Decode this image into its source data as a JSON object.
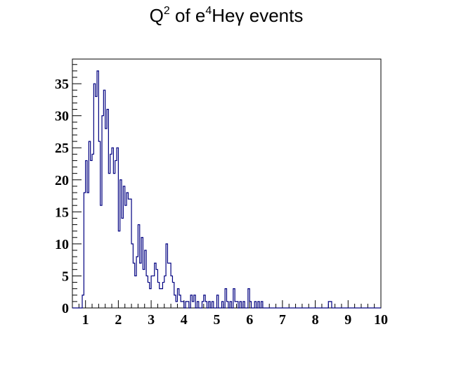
{
  "chart_data": {
    "type": "histogram",
    "title_parts": [
      "Q",
      "2",
      " of e",
      "4",
      "Heγ events"
    ],
    "xlabel": "",
    "ylabel": "",
    "xlim": [
      0.6,
      10.0
    ],
    "ylim": [
      0,
      38.85
    ],
    "x_ticks": [
      "1",
      "2",
      "3",
      "4",
      "5",
      "6",
      "7",
      "8",
      "9",
      "10"
    ],
    "y_ticks": [
      "0",
      "5",
      "10",
      "15",
      "20",
      "25",
      "30",
      "35"
    ],
    "line_color": "#000080",
    "bin_width": 0.05,
    "bin_start": 0.9,
    "values": [
      2,
      18,
      23,
      18,
      26,
      23,
      24,
      35,
      33,
      37,
      26,
      16,
      30,
      34,
      28,
      31,
      21,
      24,
      25,
      21,
      23,
      25,
      12,
      20,
      14,
      19,
      16,
      18,
      17,
      17,
      10,
      7,
      5,
      8,
      13,
      7,
      11,
      6,
      9,
      5,
      4,
      3,
      5,
      5,
      7,
      6,
      4,
      3,
      3,
      4,
      5,
      10,
      7,
      7,
      5,
      4,
      2,
      1,
      3,
      2,
      1,
      1,
      0,
      1,
      1,
      0,
      2,
      1,
      2,
      0,
      1,
      0,
      0,
      1,
      2,
      1,
      0,
      1,
      0,
      1,
      0,
      0,
      2,
      0,
      0,
      1,
      0,
      3,
      1,
      0,
      1,
      0,
      3,
      1,
      1,
      0,
      1,
      0,
      1,
      0,
      0,
      3,
      1,
      0,
      0,
      1,
      0,
      1,
      0,
      1,
      0,
      0,
      0,
      0,
      0,
      0,
      0,
      0,
      0,
      0,
      0,
      0,
      0,
      0,
      0,
      0,
      0,
      0,
      0,
      0,
      0,
      0,
      0,
      0,
      0,
      0,
      0,
      0,
      0,
      0,
      0,
      0,
      0,
      0,
      0,
      0,
      0,
      0,
      0,
      0,
      1,
      1,
      0,
      0
    ]
  }
}
